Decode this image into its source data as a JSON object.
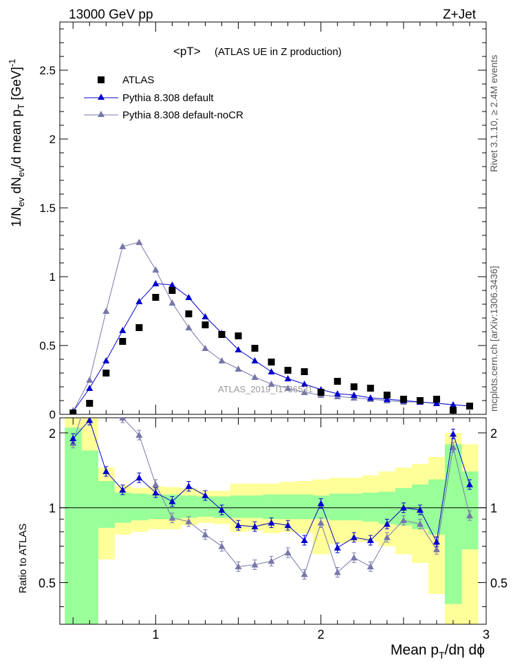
{
  "header": {
    "energy_label": "13000 GeV pp",
    "process_label": "Z+Jet",
    "plot_title": "<pT>",
    "plot_subtitle": "(ATLAS UE in Z production)",
    "watermark": "ATLAS_2019_I1736531"
  },
  "side_labels": {
    "rivet": "Rivet 3.1.10, ≥ 2.4M events",
    "mcplots": "mcplots.cern.ch [arXiv:1306.3436]"
  },
  "colors": {
    "data": "#000000",
    "default": "#0000cc",
    "noCR": "#7777aa",
    "band_outer": "#ffff99",
    "band_inner": "#99ff99"
  },
  "chart_data": [
    {
      "type": "line",
      "panel": "main",
      "xlabel": "Mean pT/dη dφ",
      "ylabel": "1/Nev dNev/d mean pT [GeV]^-1",
      "xlim": [
        0.42,
        3.0
      ],
      "ylim": [
        0,
        2.85
      ],
      "yticks": [
        "0",
        "0.5",
        "1",
        "1.5",
        "2",
        "2.5"
      ],
      "legend": "top-left",
      "x": [
        0.5,
        0.6,
        0.7,
        0.8,
        0.9,
        1.0,
        1.1,
        1.2,
        1.3,
        1.4,
        1.5,
        1.6,
        1.7,
        1.8,
        1.9,
        2.0,
        2.1,
        2.2,
        2.3,
        2.4,
        2.5,
        2.6,
        2.7,
        2.8,
        2.9
      ],
      "series": [
        {
          "name": "ATLAS",
          "style": "square",
          "values": [
            0.01,
            0.08,
            0.3,
            0.53,
            0.63,
            0.85,
            0.9,
            0.73,
            0.65,
            0.58,
            0.57,
            0.48,
            0.38,
            0.32,
            0.31,
            0.16,
            0.24,
            0.2,
            0.19,
            0.14,
            0.11,
            0.1,
            0.11,
            0.03,
            0.06
          ]
        },
        {
          "name": "Pythia 8.308 default",
          "style": "line-triangle",
          "values": [
            0.02,
            0.19,
            0.39,
            0.61,
            0.82,
            0.95,
            0.94,
            0.85,
            0.71,
            0.59,
            0.47,
            0.39,
            0.31,
            0.26,
            0.22,
            0.18,
            0.15,
            0.14,
            0.12,
            0.11,
            0.1,
            0.09,
            0.08,
            0.07,
            0.06
          ]
        },
        {
          "name": "Pythia 8.308 default-noCR",
          "style": "line-triangle",
          "values": [
            0.02,
            0.25,
            0.75,
            1.22,
            1.25,
            1.05,
            0.81,
            0.63,
            0.48,
            0.39,
            0.33,
            0.27,
            0.22,
            0.19,
            0.16,
            0.14,
            0.13,
            0.12,
            0.11,
            0.1,
            0.09,
            0.09,
            0.08,
            0.07,
            0.06
          ]
        }
      ]
    },
    {
      "type": "line",
      "panel": "ratio",
      "ylabel": "Ratio to ATLAS",
      "xlim": [
        0.42,
        3.0
      ],
      "ylim": [
        0.34,
        2.3
      ],
      "xticks": [
        "1",
        "2",
        "3"
      ],
      "yticks": [
        "0.5",
        "1",
        "2"
      ],
      "reference_line": 1,
      "x": [
        0.5,
        0.6,
        0.7,
        0.8,
        0.9,
        1.0,
        1.1,
        1.2,
        1.3,
        1.4,
        1.5,
        1.6,
        1.7,
        1.8,
        1.9,
        2.0,
        2.1,
        2.2,
        2.3,
        2.4,
        2.5,
        2.6,
        2.7,
        2.8,
        2.9
      ],
      "bands": {
        "edges": [
          0.45,
          0.55,
          0.65,
          0.75,
          0.85,
          0.95,
          1.05,
          1.15,
          1.25,
          1.35,
          1.45,
          1.55,
          1.65,
          1.75,
          1.85,
          1.95,
          2.05,
          2.15,
          2.25,
          2.35,
          2.45,
          2.55,
          2.65,
          2.75,
          2.85,
          2.95
        ],
        "outer": [
          [
            0.3,
            2.3
          ],
          [
            0.3,
            2.3
          ],
          [
            0.62,
            1.45
          ],
          [
            0.78,
            1.23
          ],
          [
            0.8,
            1.2
          ],
          [
            0.82,
            1.22
          ],
          [
            0.82,
            1.21
          ],
          [
            0.85,
            1.2
          ],
          [
            0.87,
            1.17
          ],
          [
            0.86,
            1.17
          ],
          [
            0.8,
            1.25
          ],
          [
            0.81,
            1.25
          ],
          [
            0.79,
            1.25
          ],
          [
            0.8,
            1.27
          ],
          [
            0.79,
            1.28
          ],
          [
            0.65,
            1.3
          ],
          [
            0.72,
            1.32
          ],
          [
            0.73,
            1.32
          ],
          [
            0.73,
            1.35
          ],
          [
            0.7,
            1.4
          ],
          [
            0.65,
            1.45
          ],
          [
            0.6,
            1.5
          ],
          [
            0.45,
            1.6
          ],
          [
            0.3,
            2.0
          ],
          [
            0.3,
            1.8
          ]
        ],
        "inner": [
          [
            0.3,
            2.1
          ],
          [
            0.3,
            1.7
          ],
          [
            0.83,
            1.28
          ],
          [
            0.87,
            1.15
          ],
          [
            0.89,
            1.14
          ],
          [
            0.9,
            1.13
          ],
          [
            0.9,
            1.13
          ],
          [
            0.91,
            1.12
          ],
          [
            0.92,
            1.11
          ],
          [
            0.91,
            1.11
          ],
          [
            0.91,
            1.12
          ],
          [
            0.91,
            1.12
          ],
          [
            0.9,
            1.13
          ],
          [
            0.9,
            1.13
          ],
          [
            0.9,
            1.13
          ],
          [
            0.9,
            1.12
          ],
          [
            0.89,
            1.14
          ],
          [
            0.89,
            1.14
          ],
          [
            0.88,
            1.15
          ],
          [
            0.86,
            1.16
          ],
          [
            0.85,
            1.2
          ],
          [
            0.82,
            1.24
          ],
          [
            0.78,
            1.3
          ],
          [
            0.41,
            1.8
          ],
          [
            0.68,
            1.4
          ]
        ]
      },
      "series": [
        {
          "name": "Pythia 8.308 default",
          "values": [
            1.9,
            2.25,
            1.4,
            1.18,
            1.32,
            1.15,
            1.06,
            1.22,
            1.12,
            0.98,
            0.85,
            0.84,
            0.87,
            0.85,
            0.74,
            1.04,
            0.69,
            0.76,
            0.74,
            0.86,
            1.0,
            0.98,
            0.73,
            1.98,
            1.24
          ]
        },
        {
          "name": "Pythia 8.308 default-noCR",
          "values": [
            1.82,
            3.0,
            2.6,
            2.3,
            1.96,
            1.24,
            0.91,
            0.88,
            0.78,
            0.7,
            0.58,
            0.59,
            0.61,
            0.66,
            0.54,
            0.87,
            0.55,
            0.63,
            0.58,
            0.76,
            0.89,
            0.86,
            0.68,
            1.75,
            0.93
          ]
        }
      ]
    }
  ]
}
